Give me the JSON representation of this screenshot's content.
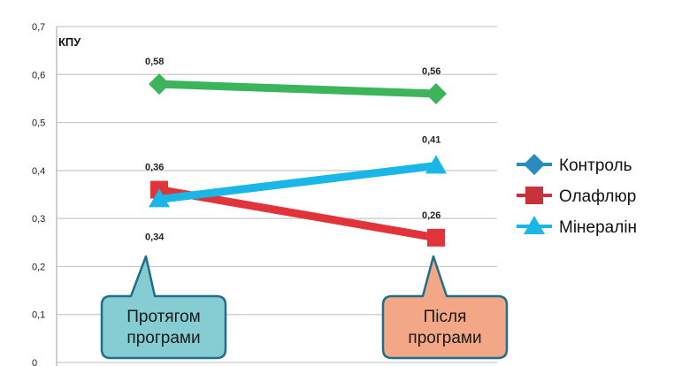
{
  "chart_data": {
    "type": "line",
    "ylabel": "КПУ",
    "ylim": [
      0,
      0.7
    ],
    "yticks": [
      "0",
      "0,1",
      "0,2",
      "0,3",
      "0,4",
      "0,5",
      "0,6",
      "0,7"
    ],
    "ytick_values": [
      0,
      0.1,
      0.2,
      0.3,
      0.4,
      0.5,
      0.6,
      0.7
    ],
    "grid": true,
    "legend_position": "right",
    "categories": [
      "Протягом програми",
      "Після програми"
    ],
    "series": [
      {
        "name": "Контроль",
        "values": [
          0.58,
          0.56
        ],
        "labels": [
          "0,58",
          "0,56"
        ],
        "color": "#3cb45a",
        "legend_color": "#2a8bbf",
        "marker": "diamond"
      },
      {
        "name": "Олафлюр",
        "values": [
          0.36,
          0.26
        ],
        "labels": [
          "0,36",
          "0,26"
        ],
        "color": "#e0343a",
        "legend_color": "#c8323a",
        "marker": "square"
      },
      {
        "name": "Мінералін",
        "values": [
          0.34,
          0.41
        ],
        "labels": [
          "0,34",
          "0,41"
        ],
        "color": "#1ab6e8",
        "legend_color": "#1ab6e8",
        "marker": "triangle"
      }
    ],
    "callouts": [
      {
        "line1": "Протягом",
        "line2": "програми",
        "fill": "#86cdd3",
        "stroke": "#1f6f8a"
      },
      {
        "line1": "Після",
        "line2": "програми",
        "fill": "#f4a786",
        "stroke": "#1f6f8a"
      }
    ]
  }
}
